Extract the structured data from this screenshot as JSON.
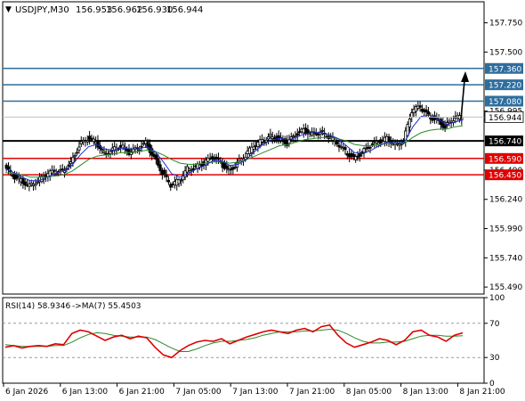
{
  "header": {
    "symbol_timeframe": "USDJPY,M30",
    "open": "156.953",
    "high": "156.962",
    "low": "156.930",
    "close": "156.944"
  },
  "price_axis": {
    "ticks": [
      "157.750",
      "157.500",
      "156.995",
      "156.490",
      "156.240",
      "155.990",
      "155.740",
      "155.490"
    ],
    "current_price": "156.944"
  },
  "levels": [
    {
      "label": "157.360",
      "color": "#2e6e9e"
    },
    {
      "label": "157.220",
      "color": "#2e6e9e"
    },
    {
      "label": "157.080",
      "color": "#2e6e9e"
    },
    {
      "label": "156.740",
      "color": "#000000"
    },
    {
      "label": "156.590",
      "color": "#e00000"
    },
    {
      "label": "156.450",
      "color": "#e00000"
    }
  ],
  "rsi": {
    "title": "RSI(14) 58.9346",
    "ma_label": "->MA(7) 55.4503",
    "ticks": [
      "100",
      "70",
      "30",
      "0"
    ],
    "line_color": "#e00000",
    "ma_color": "#2a8a2a"
  },
  "time_axis": [
    "6 Jan 2026",
    "6 Jan 13:00",
    "6 Jan 21:00",
    "7 Jan 05:00",
    "7 Jan 13:00",
    "7 Jan 21:00",
    "8 Jan 05:00",
    "8 Jan 13:00",
    "8 Jan 21:00"
  ],
  "chart_data": {
    "type": "candlestick",
    "title": "USDJPY,M30",
    "x": [
      "6 Jan 2026",
      "6 Jan 13:00",
      "6 Jan 21:00",
      "7 Jan 05:00",
      "7 Jan 13:00",
      "7 Jan 21:00",
      "8 Jan 05:00",
      "8 Jan 13:00",
      "8 Jan 21:00"
    ],
    "close_series": [
      156.52,
      156.44,
      156.4,
      156.36,
      156.4,
      156.45,
      156.48,
      156.48,
      156.55,
      156.7,
      156.76,
      156.73,
      156.63,
      156.67,
      156.7,
      156.64,
      156.67,
      156.72,
      156.6,
      156.47,
      156.36,
      156.4,
      156.5,
      156.52,
      156.55,
      156.6,
      156.55,
      156.48,
      156.55,
      156.62,
      156.7,
      156.74,
      156.78,
      156.76,
      156.72,
      156.79,
      156.83,
      156.8,
      156.82,
      156.78,
      156.72,
      156.65,
      156.59,
      156.64,
      156.7,
      156.73,
      156.76,
      156.71,
      156.74,
      157.0,
      157.03,
      156.95,
      156.92,
      156.86,
      156.93,
      156.944
    ],
    "ma_fast": [
      156.5,
      156.47,
      156.43,
      156.4,
      156.4,
      156.43,
      156.46,
      156.48,
      156.53,
      156.62,
      156.69,
      156.71,
      156.67,
      156.66,
      156.68,
      156.67,
      156.67,
      156.69,
      156.65,
      156.56,
      156.46,
      156.43,
      156.46,
      156.5,
      156.53,
      156.57,
      156.57,
      156.53,
      156.54,
      156.58,
      156.65,
      156.71,
      156.75,
      156.76,
      156.75,
      156.77,
      156.8,
      156.81,
      156.81,
      156.79,
      156.76,
      156.7,
      156.64,
      156.63,
      156.66,
      156.7,
      156.73,
      156.72,
      156.73,
      156.86,
      156.95,
      156.96,
      156.93,
      156.88,
      156.9,
      156.92
    ],
    "ma_slow": [
      156.47,
      156.46,
      156.45,
      156.43,
      156.43,
      156.43,
      156.44,
      156.45,
      156.48,
      156.53,
      156.58,
      156.61,
      156.62,
      156.63,
      156.64,
      156.64,
      156.65,
      156.66,
      156.65,
      156.62,
      156.58,
      156.55,
      156.54,
      156.54,
      156.55,
      156.56,
      156.56,
      156.55,
      156.56,
      156.58,
      156.61,
      156.64,
      156.67,
      156.7,
      156.71,
      156.73,
      156.75,
      156.76,
      156.77,
      156.77,
      156.76,
      156.74,
      156.71,
      156.7,
      156.7,
      156.71,
      156.72,
      156.72,
      156.72,
      156.77,
      156.81,
      156.83,
      156.84,
      156.84,
      156.86,
      156.87
    ],
    "rsi_values": [
      42,
      44,
      41,
      43,
      44,
      43,
      46,
      45,
      58,
      62,
      60,
      55,
      50,
      54,
      56,
      52,
      55,
      53,
      42,
      33,
      30,
      38,
      44,
      48,
      50,
      49,
      52,
      46,
      50,
      54,
      57,
      60,
      62,
      60,
      58,
      62,
      64,
      60,
      66,
      68,
      56,
      47,
      42,
      45,
      48,
      52,
      50,
      45,
      50,
      60,
      62,
      56,
      54,
      49,
      56,
      58.9
    ],
    "rsi_ma": [
      45,
      44,
      43,
      43,
      43,
      43,
      44,
      44,
      48,
      53,
      57,
      59,
      58,
      56,
      55,
      54,
      54,
      54,
      51,
      46,
      41,
      37,
      37,
      40,
      44,
      47,
      49,
      49,
      50,
      51,
      53,
      56,
      58,
      60,
      60,
      60,
      61,
      61,
      62,
      63,
      62,
      58,
      53,
      49,
      47,
      47,
      48,
      48,
      49,
      52,
      55,
      56,
      56,
      55,
      55,
      55.45
    ],
    "ylim": [
      155.43,
      157.93
    ],
    "rsi_ylim": [
      0,
      100
    ]
  }
}
